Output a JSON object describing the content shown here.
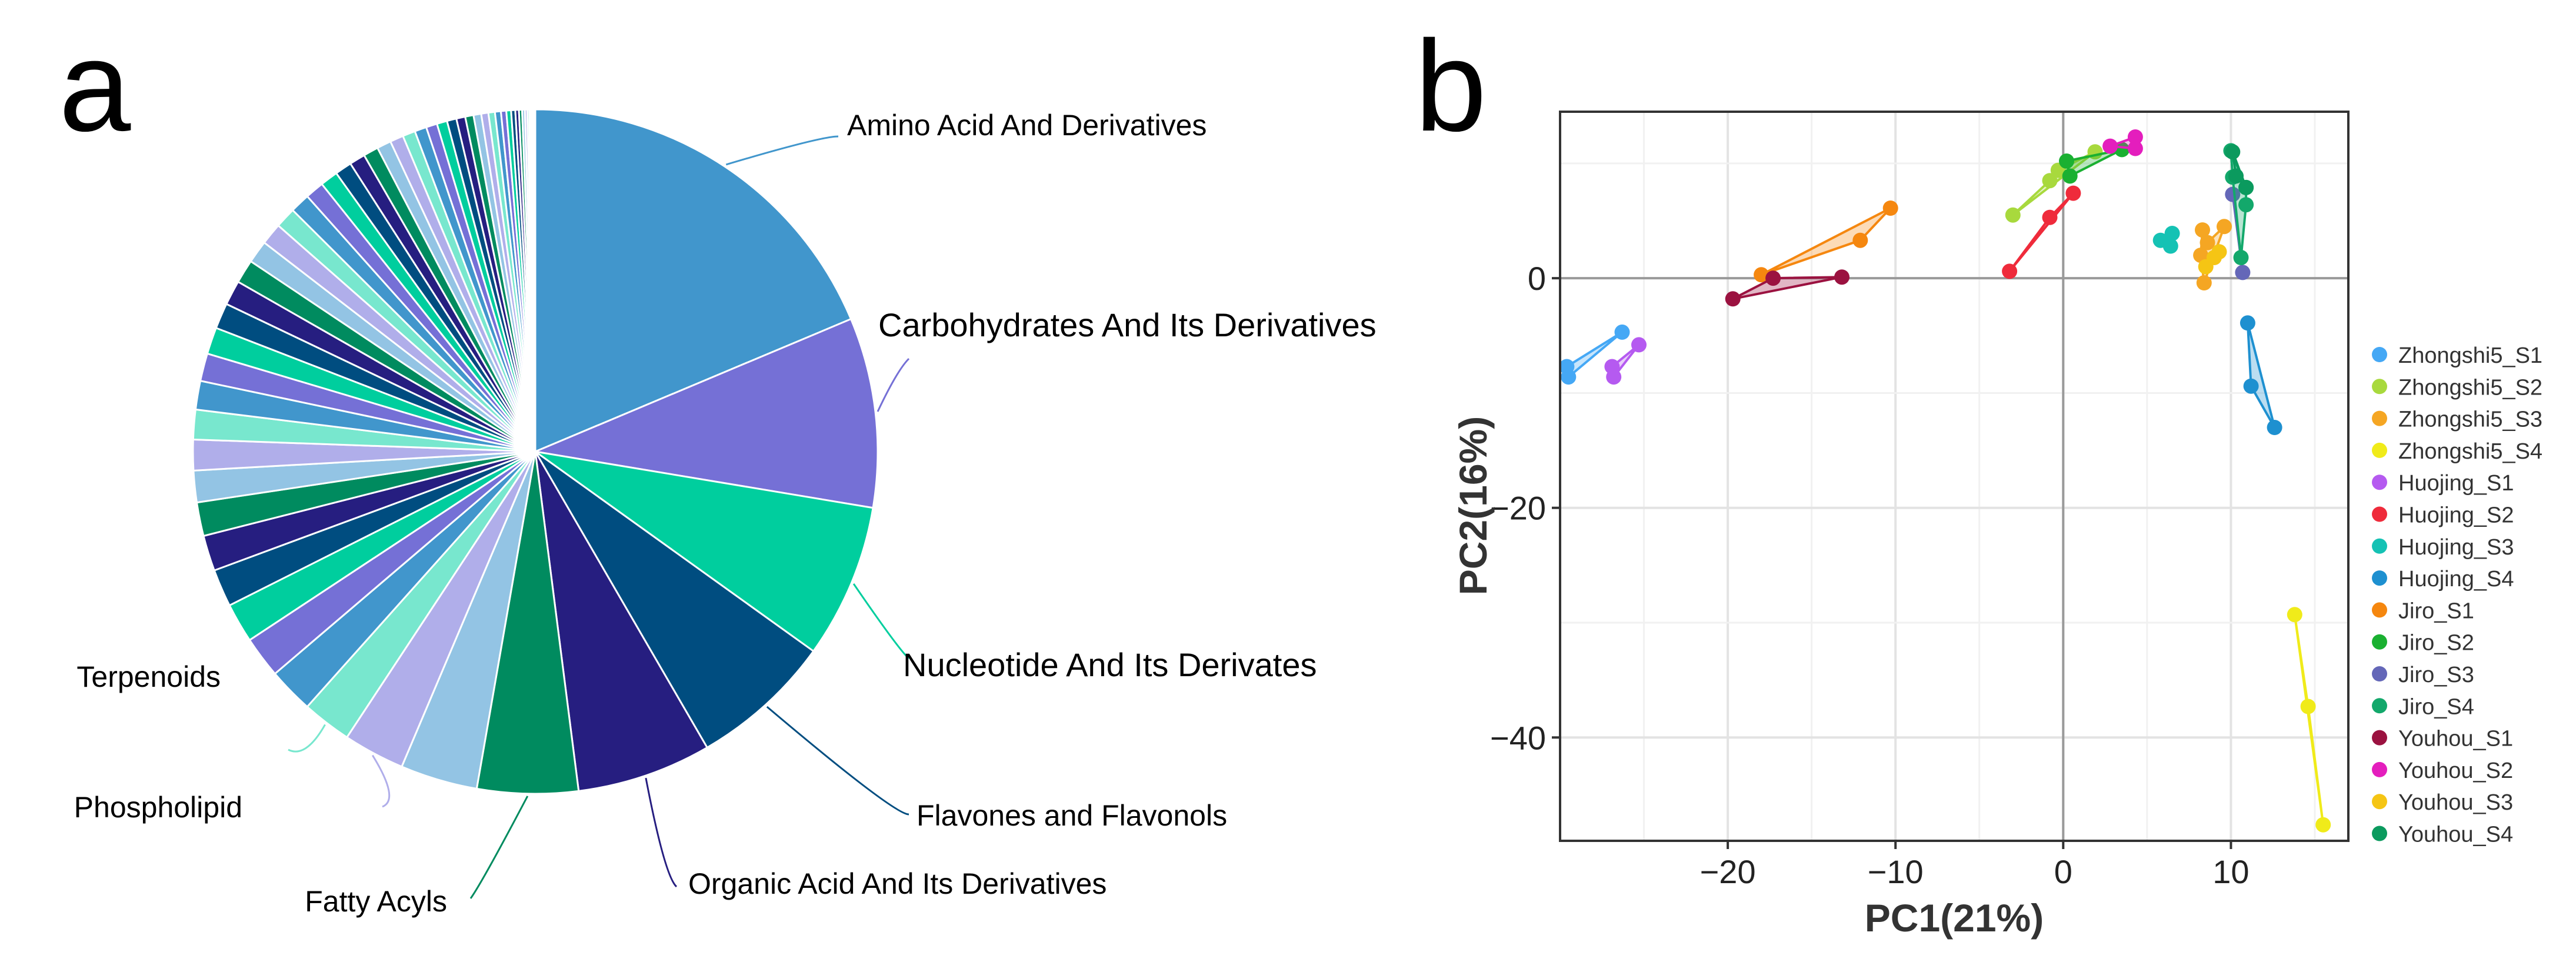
{
  "chart_data": [
    {
      "panel": "a",
      "type": "pie",
      "labeled_slices": [
        {
          "label": "Amino Acid And Derivatives",
          "value": 20.0,
          "color": "#4196cc"
        },
        {
          "label": "Carbohydrates And Its Derivatives",
          "value": 9.6,
          "color": "#7570d6"
        },
        {
          "label": "Nucleotide And Its Derivates",
          "value": 7.8,
          "color": "#00ce9e"
        },
        {
          "label": "Flavones and Flavonols",
          "value": 7.2,
          "color": "#004d80"
        },
        {
          "label": "Organic Acid And Its Derivatives",
          "value": 6.8,
          "color": "#261e80"
        },
        {
          "label": "Fatty Acyls",
          "value": 5.1,
          "color": "#008b5f"
        },
        {
          "label": "",
          "value": 3.9,
          "color": "#93c4e4"
        },
        {
          "label": "Phospholipid",
          "value": 3.1,
          "color": "#b0aeea"
        },
        {
          "label": "Terpenoids",
          "value": 2.5,
          "color": "#78e7ce"
        }
      ],
      "small_slices": [
        2.3,
        2.1,
        2.0,
        1.9,
        1.8,
        1.7,
        1.6,
        1.55,
        1.5,
        1.45,
        1.4,
        1.35,
        1.3,
        1.25,
        1.2,
        1.15,
        1.1,
        1.05,
        1.0,
        0.95,
        0.9,
        0.85,
        0.8,
        0.76,
        0.72,
        0.68,
        0.64,
        0.6,
        0.56,
        0.52,
        0.48,
        0.45,
        0.42,
        0.39,
        0.36,
        0.33,
        0.3,
        0.27,
        0.24,
        0.21,
        0.18,
        0.16,
        0.14,
        0.12,
        0.1,
        0.08,
        0.07,
        0.06,
        0.05,
        0.04
      ],
      "palette": [
        "#4196cc",
        "#7570d6",
        "#00ce9e",
        "#004d80",
        "#261e80",
        "#008b5f",
        "#93c4e4",
        "#b0aeea",
        "#78e7ce"
      ]
    },
    {
      "panel": "b",
      "type": "scatter",
      "xlabel": "PC1(21%)",
      "ylabel": "PC2(16%)",
      "xlim": [
        -30,
        17
      ],
      "ylim": [
        -49,
        14.5
      ],
      "xticks": [
        -20,
        -10,
        0,
        10
      ],
      "yticks": [
        -40,
        -20,
        0
      ],
      "xtick_labels": [
        "−20",
        "−10",
        "0",
        "10"
      ],
      "ytick_labels": [
        "−40",
        "−20",
        "0"
      ],
      "grid": true,
      "legend_position": "right",
      "series": [
        {
          "name": "Zhongshi5_S1",
          "color": "#45a8f5",
          "points": [
            [
              -29.6,
              -7.7
            ],
            [
              -29.5,
              -8.6
            ],
            [
              -26.3,
              -4.7
            ]
          ]
        },
        {
          "name": "Zhongshi5_S2",
          "color": "#a8d93d",
          "points": [
            [
              -3.0,
              5.5
            ],
            [
              -0.8,
              8.5
            ],
            [
              -0.3,
              9.4
            ],
            [
              1.9,
              11.0
            ]
          ]
        },
        {
          "name": "Zhongshi5_S3",
          "color": "#f5a623",
          "points": [
            [
              8.2,
              2.0
            ],
            [
              8.3,
              4.2
            ],
            [
              8.6,
              3.1
            ],
            [
              9.6,
              4.5
            ],
            [
              8.4,
              -0.4
            ]
          ]
        },
        {
          "name": "Zhongshi5_S4",
          "color": "#f0eb1a",
          "points": [
            [
              13.8,
              -29.3
            ],
            [
              14.6,
              -37.3
            ],
            [
              15.5,
              -47.6
            ]
          ]
        },
        {
          "name": "Huojing_S1",
          "color": "#b55af0",
          "points": [
            [
              -26.9,
              -7.7
            ],
            [
              -26.8,
              -8.6
            ],
            [
              -25.3,
              -5.8
            ]
          ]
        },
        {
          "name": "Huojing_S2",
          "color": "#ef2b3b",
          "points": [
            [
              -3.2,
              0.6
            ],
            [
              -0.8,
              5.3
            ],
            [
              0.6,
              7.4
            ]
          ]
        },
        {
          "name": "Huojing_S3",
          "color": "#15c2b4",
          "points": [
            [
              5.8,
              3.3
            ],
            [
              6.4,
              2.8
            ],
            [
              6.5,
              3.9
            ]
          ]
        },
        {
          "name": "Huojing_S4",
          "color": "#1e90d0",
          "points": [
            [
              11.0,
              -3.9
            ],
            [
              11.2,
              -9.4
            ],
            [
              12.6,
              -13.0
            ]
          ]
        },
        {
          "name": "Jiro_S1",
          "color": "#f5870f",
          "points": [
            [
              -18.0,
              0.3
            ],
            [
              -12.1,
              3.3
            ],
            [
              -10.3,
              6.1
            ]
          ]
        },
        {
          "name": "Jiro_S2",
          "color": "#1ab031",
          "points": [
            [
              0.2,
              10.2
            ],
            [
              0.4,
              8.9
            ],
            [
              3.5,
              11.2
            ]
          ]
        },
        {
          "name": "Jiro_S3",
          "color": "#6467b8",
          "points": [
            [
              10.1,
              7.3
            ],
            [
              10.7,
              0.5
            ]
          ]
        },
        {
          "name": "Jiro_S4",
          "color": "#13a86b",
          "points": [
            [
              10.0,
              11.1
            ],
            [
              10.1,
              8.8
            ],
            [
              10.9,
              7.9
            ],
            [
              10.9,
              6.4
            ],
            [
              10.6,
              1.8
            ]
          ]
        },
        {
          "name": "Youhou_S1",
          "color": "#9b1240",
          "points": [
            [
              -19.7,
              -1.8
            ],
            [
              -17.3,
              0.0
            ],
            [
              -13.2,
              0.1
            ]
          ]
        },
        {
          "name": "Youhou_S2",
          "color": "#e41ebd",
          "points": [
            [
              2.8,
              11.5
            ],
            [
              4.3,
              12.3
            ],
            [
              4.3,
              11.3
            ]
          ]
        },
        {
          "name": "Youhou_S3",
          "color": "#f5c514",
          "points": [
            [
              8.5,
              1.0
            ],
            [
              9.0,
              1.8
            ],
            [
              9.3,
              2.3
            ]
          ]
        },
        {
          "name": "Youhou_S4",
          "color": "#0b9a5e",
          "points": [
            [
              10.1,
              11.0
            ],
            [
              10.3,
              8.9
            ],
            [
              10.9,
              7.9
            ]
          ]
        }
      ]
    }
  ],
  "panel_labels": {
    "a": "a",
    "b": "b"
  }
}
